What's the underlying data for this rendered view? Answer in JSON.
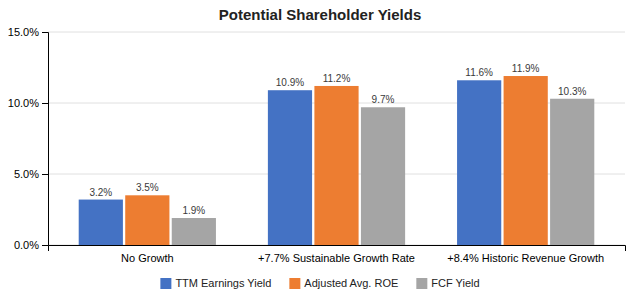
{
  "chart_data": {
    "type": "bar",
    "title": "Potential Shareholder Yields",
    "categories": [
      "No Growth",
      "+7.7% Sustainable Growth Rate",
      "+8.4% Historic Revenue Growth"
    ],
    "series": [
      {
        "name": "TTM Earnings Yield",
        "color": "#4472C4",
        "values": [
          3.2,
          10.9,
          11.6
        ],
        "value_labels": [
          "3.2%",
          "10.9%",
          "11.6%"
        ]
      },
      {
        "name": "Adjusted Avg. ROE",
        "color": "#ED7D31",
        "values": [
          3.5,
          11.2,
          11.9
        ],
        "value_labels": [
          "3.5%",
          "11.2%",
          "11.9%"
        ]
      },
      {
        "name": "FCF Yield",
        "color": "#A5A5A5",
        "values": [
          1.9,
          9.7,
          10.3
        ],
        "value_labels": [
          "1.9%",
          "9.7%",
          "10.3%"
        ]
      }
    ],
    "ylim": [
      0,
      15.0
    ],
    "yticks": [
      {
        "value": 0.0,
        "label": "0.0%"
      },
      {
        "value": 5.0,
        "label": "5.0%"
      },
      {
        "value": 10.0,
        "label": "10.0%"
      },
      {
        "value": 15.0,
        "label": "15.0%"
      }
    ],
    "grid": true,
    "data_labels": true,
    "legend": "bottom"
  }
}
